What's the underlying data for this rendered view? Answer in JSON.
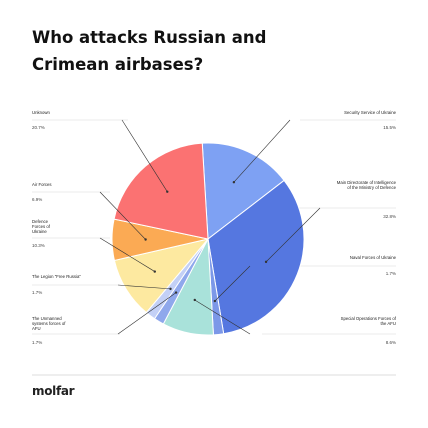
{
  "header": {
    "title": "Who attacks Russian and Crimean airbases?"
  },
  "brand": {
    "logo_text": "molfar"
  },
  "chart_data": {
    "type": "pie",
    "title": "Who attacks Russian and Crimean airbases?",
    "slices": [
      {
        "label": "Security Service of Ukraine",
        "value_label": "15.5%",
        "value": 15.5,
        "color": "#7ea1f3"
      },
      {
        "label": "Main Directorate of Intelligence of the Ministry of Defence",
        "value_label": "32.8%",
        "value": 32.8,
        "color": "#5577e0"
      },
      {
        "label": "Naval Forces of Ukraine",
        "value_label": "1.7%",
        "value": 1.7,
        "color": "#7c98e8"
      },
      {
        "label": "Special Operations Forces of the AFU",
        "value_label": "8.6%",
        "value": 8.6,
        "color": "#a9e2da"
      },
      {
        "label": "The Unmanned systems forces of AFU",
        "value_label": "1.7%",
        "value": 1.7,
        "color": "#8fa8ec"
      },
      {
        "label": "The Legion \"Free Russia\"",
        "value_label": "1.7%",
        "value": 1.7,
        "color": "#c3d0f6"
      },
      {
        "label": "Defence Forces of Ukraine",
        "value_label": "10.3%",
        "value": 10.3,
        "color": "#fde9a0"
      },
      {
        "label": "Air Forces",
        "value_label": "6.9%",
        "value": 6.9,
        "color": "#fbaa54"
      },
      {
        "label": "Unknown",
        "value_label": "20.7%",
        "value": 20.7,
        "color": "#fb7272"
      }
    ],
    "legend": "external labels with leader lines"
  }
}
